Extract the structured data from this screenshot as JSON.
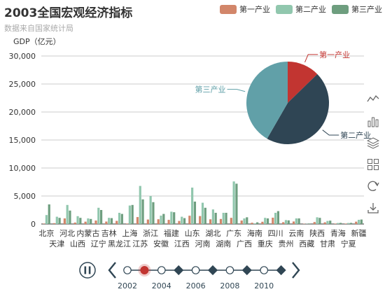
{
  "header": {
    "title": "2003全国宏观经济指标",
    "subtitle": "数据来自国家统计局"
  },
  "legend": {
    "items": [
      {
        "label": "第一产业",
        "color": "#d2866a"
      },
      {
        "label": "第二产业",
        "color": "#91c7ae"
      },
      {
        "label": "第三产业",
        "color": "#6e9e7f"
      }
    ]
  },
  "toolbox": {
    "icons": [
      "line-chart-icon",
      "bar-chart-icon",
      "stack-icon",
      "tiled-icon",
      "restore-icon",
      "save-image-icon"
    ]
  },
  "timeline": {
    "years": [
      "2002",
      "2003",
      "2004",
      "2005",
      "2006",
      "2007",
      "2008",
      "2009",
      "2010",
      "2011"
    ],
    "year_labels": [
      "2002",
      "2004",
      "2006",
      "2008",
      "2010"
    ],
    "current": "2003",
    "current_index": 1
  },
  "chart_data": [
    {
      "type": "bar",
      "ylabel": "GDP（亿元）",
      "ylim": [
        0,
        30000
      ],
      "yticks": [
        "0",
        "5,000",
        "10,000",
        "15,000",
        "20,000",
        "25,000",
        "30,000"
      ],
      "grid": true,
      "categories": [
        "北京",
        "天津",
        "河北",
        "山西",
        "内蒙古",
        "辽宁",
        "吉林",
        "黑龙江",
        "上海",
        "江苏",
        "浙江",
        "安徽",
        "福建",
        "江西",
        "山东",
        "河南",
        "湖北",
        "湖南",
        "广东",
        "广西",
        "海南",
        "重庆",
        "四川",
        "贵州",
        "云南",
        "西藏",
        "陕西",
        "甘肃",
        "青海",
        "宁夏",
        "新疆"
      ],
      "series": [
        {
          "name": "第一产业",
          "values": [
            90,
            150,
            1000,
            260,
            420,
            620,
            440,
            560,
            90,
            1240,
            800,
            850,
            740,
            550,
            1480,
            1420,
            840,
            900,
            1100,
            620,
            230,
            400,
            1130,
            320,
            450,
            50,
            350,
            300,
            80,
            80,
            420
          ]
        },
        {
          "name": "第二产业",
          "values": [
            1600,
            1300,
            3400,
            1400,
            1000,
            2900,
            1100,
            2000,
            3300,
            6800,
            5000,
            1500,
            2200,
            1300,
            6500,
            3800,
            2600,
            2000,
            7600,
            1000,
            120,
            1100,
            2000,
            700,
            1000,
            40,
            1200,
            550,
            180,
            180,
            750
          ]
        },
        {
          "name": "第三产业",
          "values": [
            3500,
            1100,
            2400,
            1100,
            900,
            2500,
            1050,
            1800,
            3400,
            4400,
            3900,
            1800,
            2100,
            1050,
            4000,
            2900,
            2000,
            2000,
            7200,
            1200,
            300,
            1000,
            2300,
            650,
            1000,
            90,
            1100,
            600,
            200,
            200,
            800
          ]
        }
      ]
    },
    {
      "type": "pie",
      "slices": [
        {
          "label": "第一产业",
          "value": 17092,
          "color": "#c23531"
        },
        {
          "label": "第二产业",
          "value": 61274,
          "color": "#2f4554"
        },
        {
          "label": "第三产业",
          "value": 56005,
          "color": "#61a0a8"
        }
      ]
    }
  ]
}
